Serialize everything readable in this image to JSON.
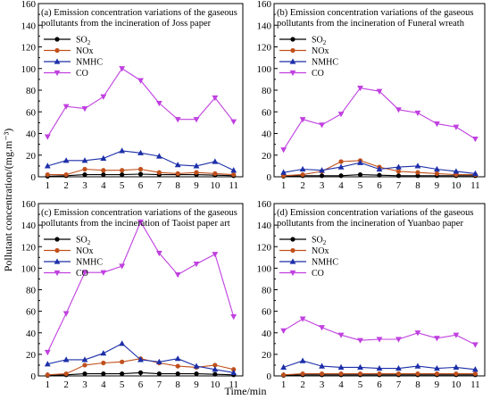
{
  "figure": {
    "ylabel": "Pollutant concentration/(mg.m⁻³)",
    "xlabel": "Time/min"
  },
  "chart_data": [
    {
      "type": "line",
      "title_line1": "(a) Emission concentration variations of the gaseous",
      "title_line2": "pollutants from the incineration of Joss paper",
      "x": [
        1,
        2,
        3,
        4,
        5,
        6,
        7,
        8,
        9,
        10,
        11
      ],
      "ylim": [
        0,
        160
      ],
      "yticks": [
        0,
        20,
        40,
        60,
        80,
        100,
        120,
        140,
        160
      ],
      "series": [
        {
          "name": "SO2",
          "color": "#000000",
          "marker": "circle",
          "values": [
            0.5,
            1,
            2,
            2,
            2,
            2.5,
            2,
            2,
            2,
            1.5,
            1
          ]
        },
        {
          "name": "NOx",
          "color": "#c0501c",
          "marker": "circle",
          "values": [
            2,
            2,
            7,
            6,
            6,
            7,
            4,
            3,
            4,
            3,
            2
          ]
        },
        {
          "name": "NMHC",
          "color": "#1c2fa8",
          "marker": "triangle-up",
          "values": [
            10,
            15,
            15,
            17,
            24,
            22,
            19,
            11,
            10,
            14,
            6
          ]
        },
        {
          "name": "CO",
          "color": "#c040e0",
          "marker": "triangle-down",
          "values": [
            37,
            65,
            63,
            74,
            100,
            89,
            68,
            53,
            53,
            73,
            51
          ]
        }
      ]
    },
    {
      "type": "line",
      "title_line1": "(b) Emission concentration variations of the gaseous",
      "title_line2": "pollutants from the incineration of Funeral wreath",
      "x": [
        1,
        2,
        3,
        4,
        5,
        6,
        7,
        8,
        9,
        10,
        11
      ],
      "ylim": [
        0,
        160
      ],
      "yticks": [
        0,
        20,
        40,
        60,
        80,
        100,
        120,
        140,
        160
      ],
      "series": [
        {
          "name": "SO2",
          "color": "#000000",
          "marker": "circle",
          "values": [
            0.5,
            1,
            1,
            1,
            2,
            1.5,
            1,
            1,
            1,
            1,
            1
          ]
        },
        {
          "name": "NOx",
          "color": "#c0501c",
          "marker": "circle",
          "values": [
            1,
            2,
            5,
            14,
            15,
            9,
            5,
            4,
            3,
            2,
            2
          ]
        },
        {
          "name": "NMHC",
          "color": "#1c2fa8",
          "marker": "triangle-up",
          "values": [
            4,
            7,
            6,
            9,
            13,
            7,
            9,
            10,
            7,
            5,
            3
          ]
        },
        {
          "name": "CO",
          "color": "#c040e0",
          "marker": "triangle-down",
          "values": [
            25,
            53,
            48,
            58,
            82,
            79,
            62,
            59,
            49,
            46,
            35
          ]
        }
      ]
    },
    {
      "type": "line",
      "title_line1": "(c) Emission concentration variations of the gaseous",
      "title_line2": "pollutants from the incineration of Taoist paper art",
      "x": [
        1,
        2,
        3,
        4,
        5,
        6,
        7,
        8,
        9,
        10,
        11
      ],
      "ylim": [
        0,
        160
      ],
      "yticks": [
        0,
        20,
        40,
        60,
        80,
        100,
        120,
        140,
        160
      ],
      "series": [
        {
          "name": "SO2",
          "color": "#000000",
          "marker": "circle",
          "values": [
            0.5,
            1,
            2,
            2,
            2,
            3,
            2,
            2,
            2,
            1.5,
            1
          ]
        },
        {
          "name": "NOx",
          "color": "#c0501c",
          "marker": "circle",
          "values": [
            1,
            2,
            10,
            12,
            13,
            16,
            12,
            9,
            8,
            10,
            6
          ]
        },
        {
          "name": "NMHC",
          "color": "#1c2fa8",
          "marker": "triangle-up",
          "values": [
            11,
            15,
            15,
            21,
            30,
            15,
            13,
            16,
            9,
            6,
            3
          ]
        },
        {
          "name": "CO",
          "color": "#c040e0",
          "marker": "triangle-down",
          "values": [
            22,
            58,
            96,
            96,
            102,
            143,
            114,
            94,
            104,
            113,
            55
          ]
        }
      ]
    },
    {
      "type": "line",
      "title_line1": "(d) Emission concentration variations of the gaseous",
      "title_line2": "pollutants from the incineration of Yuanbao paper",
      "x": [
        1,
        2,
        3,
        4,
        5,
        6,
        7,
        8,
        9,
        10,
        11
      ],
      "ylim": [
        0,
        160
      ],
      "yticks": [
        0,
        20,
        40,
        60,
        80,
        100,
        120,
        140,
        160
      ],
      "series": [
        {
          "name": "SO2",
          "color": "#000000",
          "marker": "circle",
          "values": [
            0.5,
            1,
            1,
            1,
            1,
            1,
            1,
            1,
            1,
            1,
            1
          ]
        },
        {
          "name": "NOx",
          "color": "#c0501c",
          "marker": "circle",
          "values": [
            1,
            2,
            2,
            2,
            2,
            2,
            2,
            2,
            2,
            2,
            2
          ]
        },
        {
          "name": "NMHC",
          "color": "#1c2fa8",
          "marker": "triangle-up",
          "values": [
            8,
            14,
            9,
            8,
            8,
            7,
            7,
            9,
            7,
            8,
            6
          ]
        },
        {
          "name": "CO",
          "color": "#c040e0",
          "marker": "triangle-down",
          "values": [
            42,
            53,
            45,
            38,
            33,
            34,
            34,
            40,
            35,
            38,
            29
          ]
        }
      ]
    }
  ]
}
